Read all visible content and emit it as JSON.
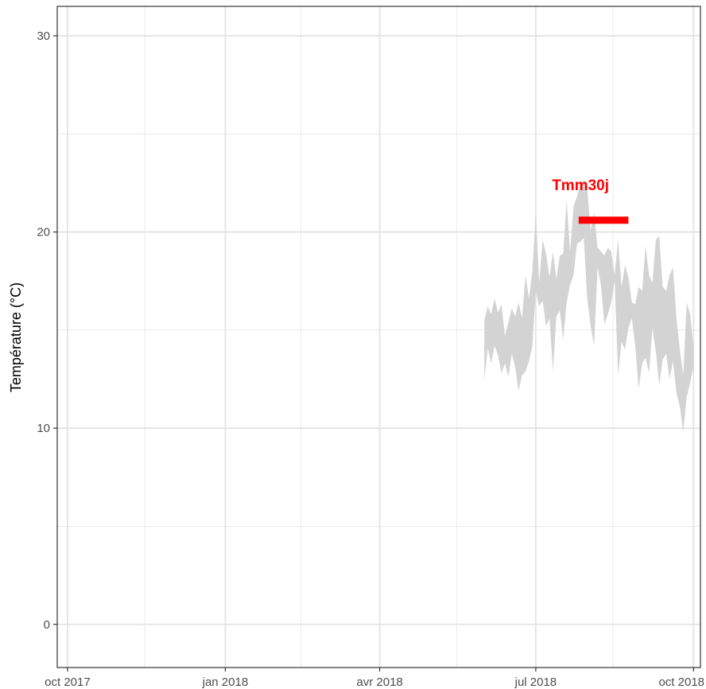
{
  "chart_data": {
    "type": "area",
    "title": "",
    "xlabel": "",
    "ylabel": "Température (°C)",
    "x_range": [
      "2017-09-25",
      "2018-10-05"
    ],
    "ylim": [
      -2.2,
      31.5
    ],
    "grid": true,
    "legend": "none",
    "x_ticks": [
      {
        "date": "2017-10-01",
        "label": "oct 2017"
      },
      {
        "date": "2018-01-01",
        "label": "jan 2018"
      },
      {
        "date": "2018-04-01",
        "label": "avr 2018"
      },
      {
        "date": "2018-07-01",
        "label": "jul 2018"
      },
      {
        "date": "2018-10-01",
        "label": "oct 2018"
      }
    ],
    "x_minor_ticks": [
      "2017-11-15",
      "2018-02-14",
      "2018-05-16",
      "2018-08-15"
    ],
    "y_ticks": [
      0,
      10,
      20,
      30
    ],
    "y_minor_ticks": [
      5,
      15,
      25
    ],
    "series": [
      {
        "type": "ribbon",
        "color": "#d3d3d3",
        "x": [
          "2018-06-01",
          "2018-06-03",
          "2018-06-05",
          "2018-06-07",
          "2018-06-09",
          "2018-06-11",
          "2018-06-13",
          "2018-06-15",
          "2018-06-17",
          "2018-06-19",
          "2018-06-21",
          "2018-06-23",
          "2018-06-25",
          "2018-06-27",
          "2018-06-29",
          "2018-07-01",
          "2018-07-03",
          "2018-07-05",
          "2018-07-07",
          "2018-07-09",
          "2018-07-11",
          "2018-07-13",
          "2018-07-15",
          "2018-07-17",
          "2018-07-19",
          "2018-07-21",
          "2018-07-23",
          "2018-07-25",
          "2018-07-27",
          "2018-07-29",
          "2018-07-31",
          "2018-08-02",
          "2018-08-04",
          "2018-08-06",
          "2018-08-08",
          "2018-08-10",
          "2018-08-12",
          "2018-08-14",
          "2018-08-16",
          "2018-08-18",
          "2018-08-20",
          "2018-08-22",
          "2018-08-24",
          "2018-08-26",
          "2018-08-28",
          "2018-08-30",
          "2018-09-01",
          "2018-09-03",
          "2018-09-05",
          "2018-09-07",
          "2018-09-09",
          "2018-09-11",
          "2018-09-13",
          "2018-09-15",
          "2018-09-17",
          "2018-09-19",
          "2018-09-21",
          "2018-09-23",
          "2018-09-25",
          "2018-09-27",
          "2018-09-29",
          "2018-10-01"
        ],
        "upper": [
          15.5,
          16.2,
          15.8,
          16.6,
          15.9,
          16.3,
          14.7,
          15.4,
          16.1,
          15.7,
          16.4,
          15.6,
          17.8,
          16.6,
          18.0,
          21.0,
          17.4,
          19.6,
          18.9,
          17.7,
          19.0,
          17.6,
          18.8,
          18.9,
          21.6,
          19.0,
          21.3,
          21.8,
          22.5,
          22.6,
          22.2,
          20.1,
          21.0,
          19.2,
          19.0,
          18.8,
          19.2,
          19.0,
          17.8,
          19.6,
          17.2,
          18.3,
          17.7,
          16.4,
          16.3,
          17.2,
          17.0,
          19.3,
          17.8,
          17.4,
          19.6,
          19.8,
          17.2,
          17.0,
          17.8,
          18.2,
          15.6,
          14.0,
          12.7,
          16.4,
          15.8,
          14.1
        ],
        "lower": [
          12.4,
          14.1,
          13.3,
          14.2,
          13.7,
          12.8,
          13.3,
          12.6,
          13.8,
          13.1,
          11.9,
          12.7,
          12.9,
          13.4,
          14.2,
          17.0,
          16.2,
          16.5,
          15.2,
          15.6,
          12.9,
          15.7,
          16.0,
          14.5,
          16.4,
          17.3,
          17.8,
          19.4,
          19.5,
          19.7,
          16.6,
          15.2,
          14.2,
          18.2,
          17.3,
          15.3,
          15.8,
          16.4,
          17.5,
          12.7,
          14.4,
          14.0,
          15.1,
          15.6,
          14.2,
          12.0,
          13.3,
          13.6,
          12.8,
          15.1,
          13.9,
          12.2,
          13.5,
          13.8,
          12.5,
          13.4,
          11.8,
          11.1,
          9.8,
          11.6,
          12.3,
          13.2
        ]
      }
    ],
    "annotations": [
      {
        "type": "segment",
        "color": "#ff0000",
        "x_start": "2018-07-26",
        "x_end": "2018-08-24",
        "y": 20.6,
        "label": "Tmm30j"
      }
    ]
  }
}
